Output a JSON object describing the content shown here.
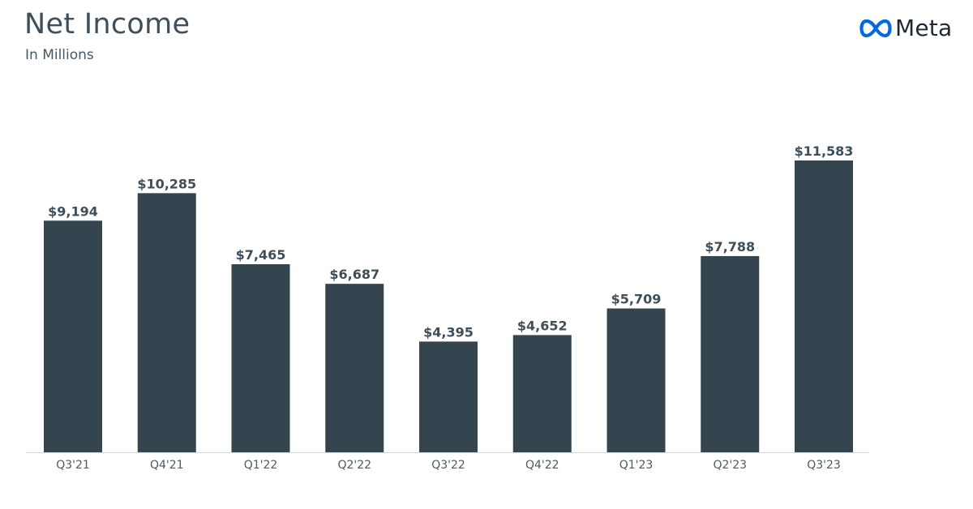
{
  "title": "Net Income",
  "subtitle": "In Millions",
  "logo": {
    "text": "Meta",
    "icon": "meta-infinity-icon",
    "color": "#0668e1"
  },
  "chart_data": {
    "type": "bar",
    "categories": [
      "Q3'21",
      "Q4'21",
      "Q1'22",
      "Q2'22",
      "Q3'22",
      "Q4'22",
      "Q1'23",
      "Q2'23",
      "Q3'23"
    ],
    "values": [
      9194,
      10285,
      7465,
      6687,
      4395,
      4652,
      5709,
      7788,
      11583
    ],
    "value_labels": [
      "$9,194",
      "$10,285",
      "$7,465",
      "$6,687",
      "$4,395",
      "$4,652",
      "$5,709",
      "$7,788",
      "$11,583"
    ],
    "ylim": [
      0,
      11583
    ],
    "grid": false,
    "legend": "none",
    "bar_color": "#344550"
  }
}
